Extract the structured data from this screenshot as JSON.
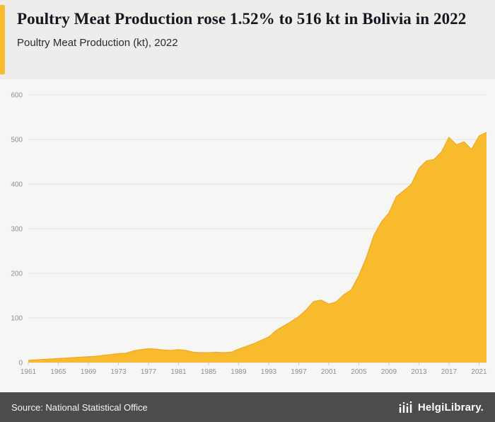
{
  "header": {
    "title": "Poultry Meat Production rose 1.52% to 516 kt in Bolivia in 2022",
    "subtitle": "Poultry Meat Production (kt), 2022",
    "accent_color": "#f8bb2d"
  },
  "footer": {
    "source": "Source: National Statistical Office",
    "logo_text": "HelgiLibrary.",
    "background": "#4d4c4a"
  },
  "chart_data": {
    "type": "area",
    "title": "Poultry Meat Production (kt), 2022",
    "xlabel": "",
    "ylabel": "",
    "ylim": [
      0,
      600
    ],
    "yticks": [
      0,
      100,
      200,
      300,
      400,
      500,
      600
    ],
    "xticks": [
      1961,
      1965,
      1969,
      1973,
      1977,
      1981,
      1985,
      1989,
      1993,
      1997,
      2001,
      2005,
      2009,
      2013,
      2017,
      2021
    ],
    "grid": true,
    "legend": "none",
    "area_color": "#f8bb2d",
    "edge_color": "#f3a71f",
    "x": [
      1961,
      1962,
      1963,
      1964,
      1965,
      1966,
      1967,
      1968,
      1969,
      1970,
      1971,
      1972,
      1973,
      1974,
      1975,
      1976,
      1977,
      1978,
      1979,
      1980,
      1981,
      1982,
      1983,
      1984,
      1985,
      1986,
      1987,
      1988,
      1989,
      1990,
      1991,
      1992,
      1993,
      1994,
      1995,
      1996,
      1997,
      1998,
      1999,
      2000,
      2001,
      2002,
      2003,
      2004,
      2005,
      2006,
      2007,
      2008,
      2009,
      2010,
      2011,
      2012,
      2013,
      2014,
      2015,
      2016,
      2017,
      2018,
      2019,
      2020,
      2021,
      2022
    ],
    "values": [
      5,
      6,
      7,
      8,
      9,
      10,
      11,
      12,
      13,
      14,
      16,
      18,
      20,
      21,
      26,
      29,
      31,
      30,
      28,
      27,
      29,
      27,
      23,
      22,
      22,
      23,
      22,
      23,
      30,
      36,
      42,
      50,
      57,
      72,
      82,
      92,
      103,
      118,
      137,
      140,
      131,
      136,
      152,
      163,
      195,
      235,
      285,
      315,
      335,
      372,
      385,
      400,
      435,
      452,
      455,
      472,
      505,
      488,
      495,
      478,
      508,
      516
    ]
  }
}
